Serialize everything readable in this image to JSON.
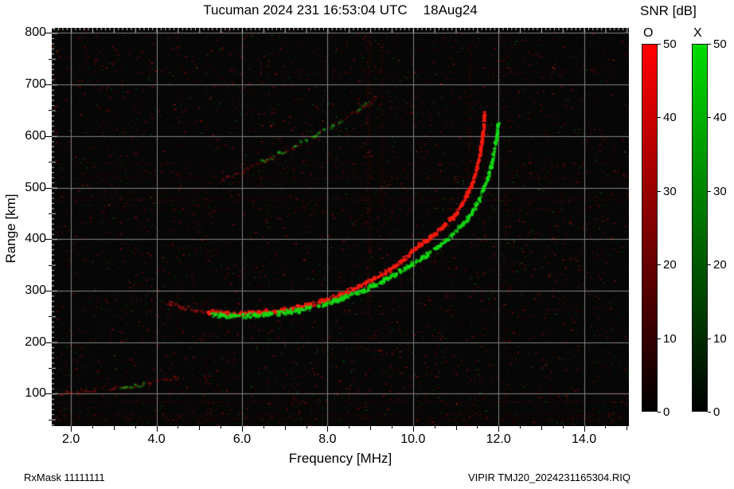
{
  "footer": {
    "left": "RxMask 11111111",
    "right": "VIPIR  TMJ20_2024231165304.RIQ"
  },
  "chart_data": {
    "type": "heatmap",
    "station": "Tucuman",
    "title": "Tucuman 2024 231 16:53:04 UTC",
    "date_label": "18Aug24",
    "xlabel": "Frequency [MHz]",
    "ylabel": "Range [km]",
    "xlim": [
      1.55,
      15.05
    ],
    "ylim": [
      37,
      810
    ],
    "x_ticks": {
      "values": [
        2,
        4,
        6,
        8,
        10,
        12,
        14
      ],
      "labels": [
        "2.0",
        "4.0",
        "6.0",
        "8.0",
        "10.0",
        "12.0",
        "14.0"
      ]
    },
    "y_ticks": {
      "values": [
        100,
        200,
        300,
        400,
        500,
        600,
        700,
        800
      ],
      "labels": [
        "100",
        "200",
        "300",
        "400",
        "500",
        "600",
        "700",
        "800"
      ]
    },
    "grid": true,
    "background_color": "#060606",
    "grid_color": "#828282",
    "legend": {
      "title": "SNR [dB]",
      "o_label": "O",
      "x_label": "X",
      "min": 0,
      "max": 50,
      "ticks": [
        0,
        10,
        20,
        30,
        40,
        50
      ],
      "o_color": "#ff0000",
      "x_color": "#00dc00"
    },
    "traces": [
      {
        "name": "f-trace-o-lead",
        "mode": "O",
        "color": "#e01818",
        "intensity": 0.5,
        "width": 5,
        "gap": 0.35,
        "bright": false,
        "points": [
          [
            4.25,
            277
          ],
          [
            4.6,
            268
          ],
          [
            4.95,
            262
          ],
          [
            5.3,
            258
          ]
        ]
      },
      {
        "name": "f-trace-o",
        "mode": "O",
        "color": "#ff1c10",
        "intensity": 0.95,
        "width": 6,
        "gap": 0.15,
        "bright": true,
        "points": [
          [
            5.2,
            259
          ],
          [
            5.6,
            256
          ],
          [
            6.0,
            255
          ],
          [
            6.4,
            257
          ],
          [
            6.8,
            260
          ],
          [
            7.2,
            265
          ],
          [
            7.6,
            272
          ],
          [
            8.0,
            282
          ],
          [
            8.4,
            295
          ],
          [
            8.8,
            310
          ],
          [
            9.2,
            328
          ],
          [
            9.6,
            347
          ],
          [
            10.0,
            378
          ],
          [
            10.35,
            398
          ],
          [
            10.7,
            422
          ],
          [
            11.0,
            448
          ],
          [
            11.2,
            474
          ],
          [
            11.35,
            500
          ],
          [
            11.47,
            528
          ],
          [
            11.56,
            560
          ],
          [
            11.62,
            592
          ],
          [
            11.66,
            622
          ],
          [
            11.68,
            650
          ]
        ]
      },
      {
        "name": "f-trace-x",
        "mode": "X",
        "color": "#16dc16",
        "intensity": 0.95,
        "width": 6,
        "gap": 0.18,
        "bright": true,
        "points": [
          [
            5.3,
            253
          ],
          [
            5.7,
            251
          ],
          [
            6.1,
            251
          ],
          [
            6.5,
            253
          ],
          [
            6.9,
            256
          ],
          [
            7.3,
            261
          ],
          [
            7.7,
            268
          ],
          [
            8.1,
            277
          ],
          [
            8.5,
            289
          ],
          [
            8.9,
            302
          ],
          [
            9.3,
            318
          ],
          [
            9.7,
            336
          ],
          [
            10.1,
            356
          ],
          [
            10.45,
            376
          ],
          [
            10.8,
            398
          ],
          [
            11.1,
            422
          ],
          [
            11.35,
            448
          ],
          [
            11.55,
            476
          ],
          [
            11.7,
            506
          ],
          [
            11.82,
            538
          ],
          [
            11.9,
            570
          ],
          [
            11.96,
            600
          ],
          [
            12.0,
            626
          ]
        ]
      },
      {
        "name": "second-hop-o",
        "mode": "O",
        "color": "#d81414",
        "intensity": 0.3,
        "width": 5,
        "gap": 0.45,
        "bright": false,
        "points": [
          [
            5.4,
            512
          ],
          [
            5.8,
            524
          ],
          [
            6.2,
            538
          ],
          [
            6.6,
            553
          ],
          [
            7.0,
            569
          ],
          [
            7.4,
            586
          ],
          [
            7.8,
            604
          ],
          [
            8.2,
            623
          ],
          [
            8.6,
            643
          ],
          [
            9.0,
            665
          ],
          [
            9.15,
            676
          ]
        ]
      },
      {
        "name": "second-hop-x",
        "mode": "X",
        "color": "#18d018",
        "intensity": 0.5,
        "width": 5,
        "gap": 0.5,
        "bright": false,
        "points": [
          [
            6.4,
            549
          ],
          [
            6.8,
            563
          ],
          [
            7.2,
            578
          ],
          [
            7.6,
            595
          ],
          [
            8.0,
            613
          ],
          [
            8.35,
            630
          ]
        ]
      },
      {
        "name": "second-hop-x-top",
        "mode": "X",
        "color": "#18d018",
        "intensity": 0.35,
        "width": 5,
        "gap": 0.5,
        "bright": false,
        "points": [
          [
            8.7,
            648
          ],
          [
            9.0,
            667
          ]
        ]
      },
      {
        "name": "e-trace-o",
        "mode": "O",
        "color": "#d81414",
        "intensity": 0.35,
        "width": 4,
        "gap": 0.5,
        "bright": false,
        "points": [
          [
            1.75,
            100
          ],
          [
            2.2,
            103
          ],
          [
            2.7,
            107
          ],
          [
            3.2,
            112
          ],
          [
            3.7,
            118
          ],
          [
            4.2,
            126
          ],
          [
            4.6,
            133
          ]
        ]
      },
      {
        "name": "e-trace-x",
        "mode": "X",
        "color": "#18d018",
        "intensity": 0.5,
        "width": 4,
        "gap": 0.4,
        "bright": false,
        "points": [
          [
            3.15,
            111
          ],
          [
            3.45,
            114
          ],
          [
            3.75,
            118
          ]
        ]
      }
    ],
    "noise": {
      "seed": 1337,
      "red_count": 8200,
      "green_count": 2500,
      "h_bands": 14
    },
    "rfi_streaks": [
      {
        "freq": 8.95,
        "width": 0.12,
        "span": [
          250,
          800
        ],
        "count": 420,
        "color": "#ff3020",
        "alpha": 0.1
      },
      {
        "freq": 9.25,
        "width": 0.08,
        "span": [
          450,
          800
        ],
        "count": 200,
        "color": "#ff3020",
        "alpha": 0.08
      },
      {
        "freq": 11.3,
        "width": 0.1,
        "span": [
          520,
          790
        ],
        "count": 160,
        "color": "#ff3020",
        "alpha": 0.09
      },
      {
        "freq": 12.15,
        "width": 0.1,
        "span": [
          60,
          800
        ],
        "count": 220,
        "color": "#ff3020",
        "alpha": 0.07
      },
      {
        "freq": 5.15,
        "width": 0.08,
        "span": [
          40,
          800
        ],
        "count": 180,
        "color": "#ff3020",
        "alpha": 0.06
      },
      {
        "freq": 13.2,
        "width": 0.08,
        "span": [
          40,
          780
        ],
        "count": 150,
        "color": "#ff3020",
        "alpha": 0.06
      },
      {
        "freq": 6.6,
        "width": 0.06,
        "span": [
          40,
          780
        ],
        "count": 120,
        "color": "#30ff30",
        "alpha": 0.05
      }
    ]
  }
}
